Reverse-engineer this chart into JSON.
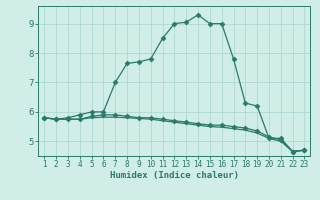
{
  "x": [
    1,
    2,
    3,
    4,
    5,
    6,
    7,
    8,
    9,
    10,
    11,
    12,
    13,
    14,
    15,
    16,
    17,
    18,
    19,
    20,
    21,
    22,
    23
  ],
  "line1": [
    5.8,
    5.75,
    5.8,
    5.9,
    6.0,
    6.0,
    7.0,
    7.65,
    7.7,
    7.8,
    8.5,
    9.0,
    9.05,
    9.3,
    9.0,
    9.0,
    7.8,
    6.3,
    6.2,
    5.1,
    5.1,
    4.65,
    4.7
  ],
  "line2": [
    5.8,
    5.75,
    5.75,
    5.75,
    5.85,
    5.9,
    5.9,
    5.85,
    5.8,
    5.8,
    5.75,
    5.7,
    5.65,
    5.6,
    5.55,
    5.55,
    5.5,
    5.45,
    5.35,
    5.15,
    5.05,
    4.65,
    4.7
  ],
  "line3": [
    5.8,
    5.75,
    5.75,
    5.75,
    5.8,
    5.82,
    5.82,
    5.8,
    5.78,
    5.75,
    5.7,
    5.65,
    5.6,
    5.55,
    5.5,
    5.48,
    5.43,
    5.38,
    5.28,
    5.1,
    5.0,
    4.65,
    4.7
  ],
  "line_color": "#2a7a6a",
  "bg_color": "#d0ede8",
  "grid_color": "#a8d5cc",
  "xlabel": "Humidex (Indice chaleur)",
  "ylim": [
    4.5,
    9.6
  ],
  "xlim": [
    0.5,
    23.5
  ],
  "yticks": [
    5,
    6,
    7,
    8,
    9
  ],
  "xticks": [
    1,
    2,
    3,
    4,
    5,
    6,
    7,
    8,
    9,
    10,
    11,
    12,
    13,
    14,
    15,
    16,
    17,
    18,
    19,
    20,
    21,
    22,
    23
  ],
  "marker": "D",
  "markersize": 2.5,
  "linewidth": 0.9,
  "tick_fontsize": 5.5,
  "xlabel_fontsize": 6.5
}
